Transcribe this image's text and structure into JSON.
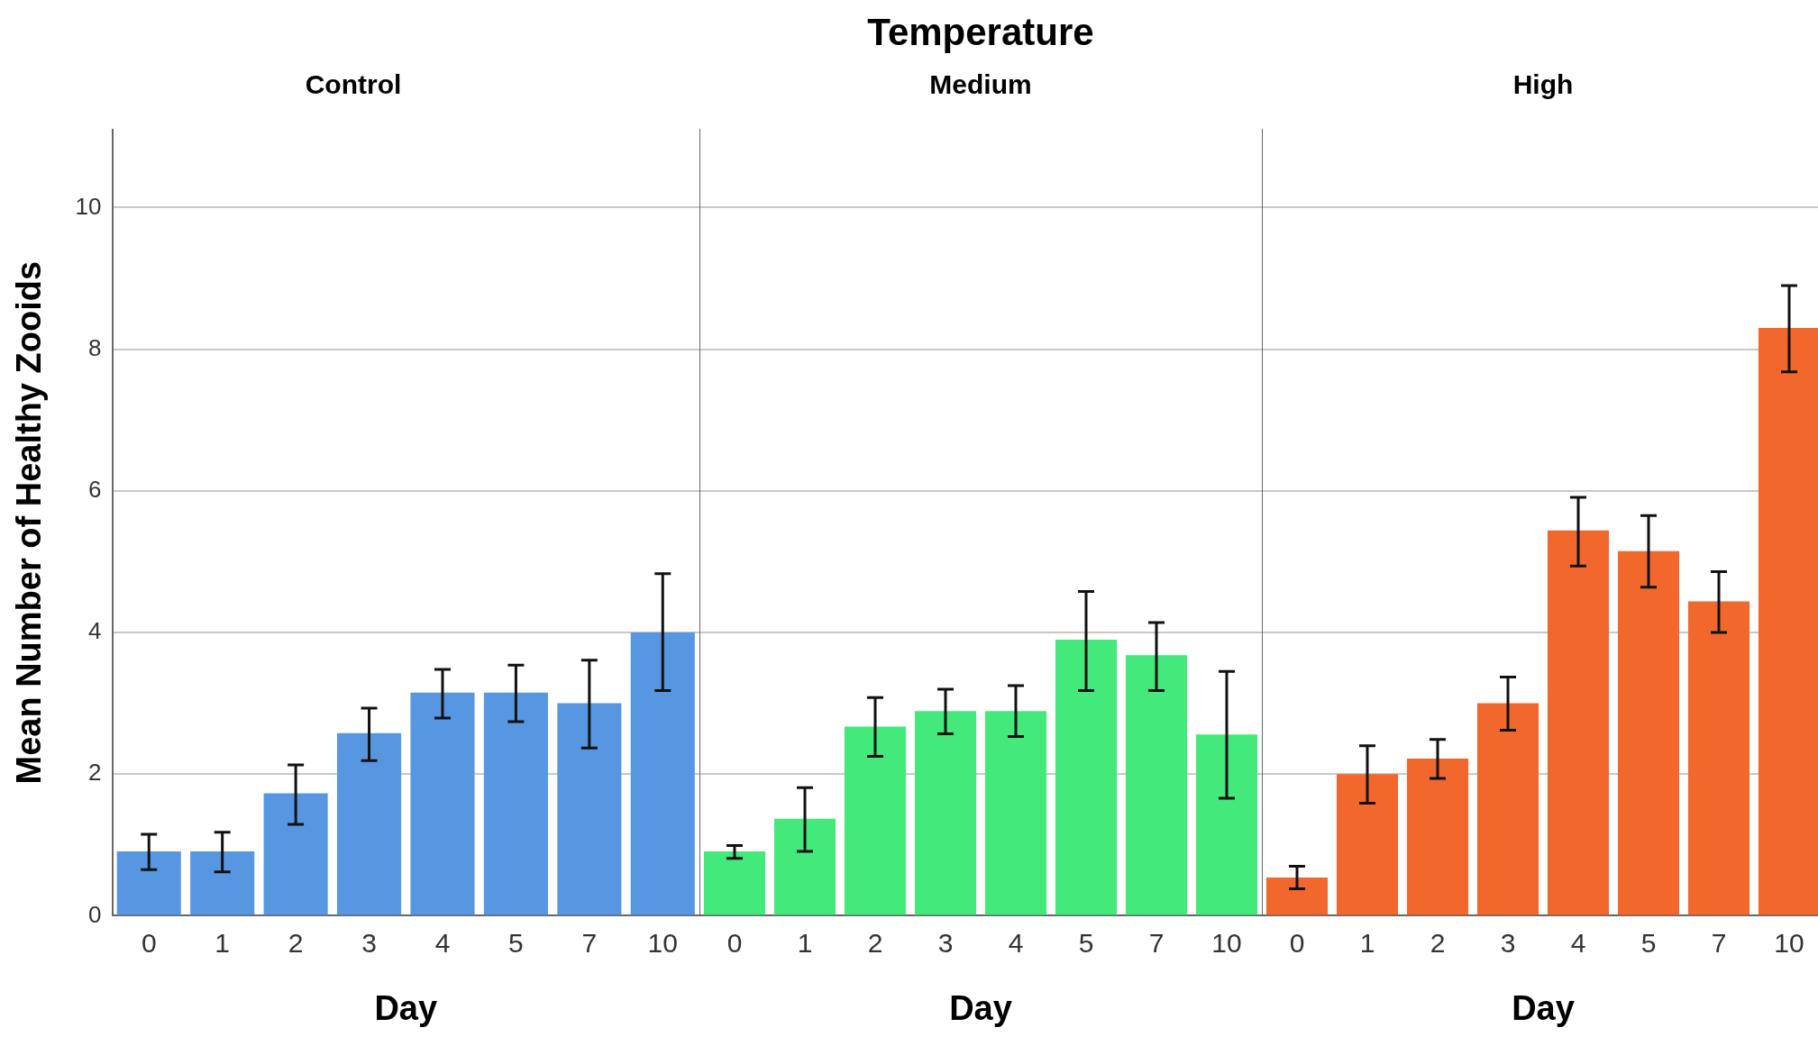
{
  "chart_data": [
    {
      "type": "bar",
      "title": "Control",
      "annotations": [
        "Temperature"
      ],
      "xlabel": "Day",
      "ylabel": "Mean Number of Healthy Zooids",
      "categories": [
        "0",
        "1",
        "2",
        "3",
        "4",
        "5",
        "7",
        "10"
      ],
      "series": [
        {
          "color": "#5797e2",
          "values": [
            0.91,
            0.91,
            1.73,
            2.58,
            3.15,
            3.15,
            3.0,
            4.0
          ],
          "errors": [
            [
              0.65,
              1.15
            ],
            [
              0.62,
              1.18
            ],
            [
              1.29,
              2.13
            ],
            [
              2.19,
              2.93
            ],
            [
              2.79,
              3.48
            ],
            [
              2.74,
              3.54
            ],
            [
              2.37,
              3.61
            ],
            [
              3.18,
              4.83
            ]
          ]
        }
      ],
      "ylim": [
        0,
        11.1
      ],
      "yticks": [
        0,
        2,
        4,
        6,
        8,
        10
      ],
      "grid": "y",
      "legend": false
    },
    {
      "type": "bar",
      "title": "Medium",
      "xlabel": "Day",
      "categories": [
        "0",
        "1",
        "2",
        "3",
        "4",
        "5",
        "7",
        "10"
      ],
      "series": [
        {
          "color": "#43e97b",
          "values": [
            0.91,
            1.37,
            2.67,
            2.89,
            2.89,
            3.9,
            3.68,
            2.56
          ],
          "errors": [
            [
              0.81,
              0.99
            ],
            [
              0.91,
              1.81
            ],
            [
              2.25,
              3.08
            ],
            [
              2.57,
              3.2
            ],
            [
              2.53,
              3.25
            ],
            [
              3.18,
              4.58
            ],
            [
              3.18,
              4.14
            ],
            [
              1.66,
              3.45
            ]
          ]
        }
      ],
      "ylim": [
        0,
        11.1
      ],
      "yticks": [
        0,
        2,
        4,
        6,
        8,
        10
      ],
      "grid": "y",
      "legend": false,
      "tick_labels": "x"
    },
    {
      "type": "bar",
      "title": "High",
      "xlabel": "Day",
      "categories": [
        "0",
        "1",
        "2",
        "3",
        "4",
        "5",
        "7",
        "10"
      ],
      "series": [
        {
          "color": "#f2682c",
          "values": [
            0.54,
            2.0,
            2.22,
            3.0,
            5.44,
            5.15,
            4.44,
            8.3
          ],
          "errors": [
            [
              0.38,
              0.7
            ],
            [
              1.59,
              2.4
            ],
            [
              1.94,
              2.49
            ],
            [
              2.62,
              3.37
            ],
            [
              4.94,
              5.91
            ],
            [
              4.64,
              5.65
            ],
            [
              4.0,
              4.86
            ],
            [
              7.68,
              8.9
            ]
          ]
        }
      ],
      "ylim": [
        0,
        11.1
      ],
      "yticks": [
        0,
        2,
        4,
        6,
        8,
        10
      ],
      "grid": "y",
      "legend": false,
      "tick_labels": "x"
    }
  ]
}
